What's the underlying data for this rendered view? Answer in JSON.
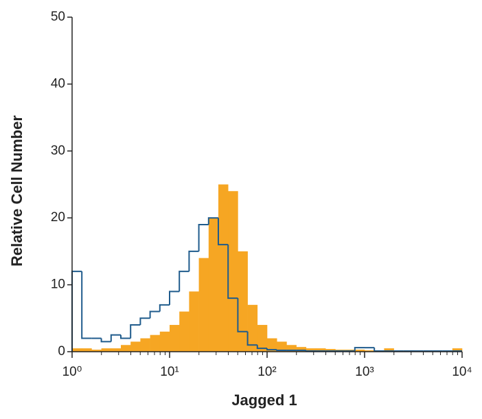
{
  "chart_data": {
    "type": "histogram",
    "x_label": "Jagged 1",
    "y_label": "Relative Cell Number",
    "xscale": "log",
    "xlim": [
      1,
      10000
    ],
    "ylim": [
      0,
      50
    ],
    "xticks": [
      {
        "value": 1,
        "label": "10⁰"
      },
      {
        "value": 10,
        "label": "10¹"
      },
      {
        "value": 100,
        "label": "10²"
      },
      {
        "value": 1000,
        "label": "10³"
      },
      {
        "value": 10000,
        "label": "10⁴"
      }
    ],
    "x_minor_ticks": [
      2,
      3,
      4,
      5,
      6,
      7,
      8,
      9,
      20,
      30,
      40,
      50,
      60,
      70,
      80,
      90,
      200,
      300,
      400,
      500,
      600,
      700,
      800,
      900,
      2000,
      3000,
      4000,
      5000,
      6000,
      7000,
      8000,
      9000
    ],
    "yticks": [
      0,
      10,
      20,
      30,
      40,
      50
    ],
    "bins": [
      1,
      1.259,
      1.585,
      1.995,
      2.512,
      3.162,
      3.981,
      5.012,
      6.31,
      7.943,
      10,
      12.59,
      15.85,
      19.95,
      25.12,
      31.62,
      39.81,
      50.12,
      63.1,
      79.43,
      100,
      125.9,
      158.5,
      199.5,
      251.2,
      316.2,
      398.1,
      501.2,
      631,
      794.3,
      1000,
      1259,
      1585,
      1995,
      2512,
      3162,
      3981,
      5012,
      6310,
      7943,
      10000
    ],
    "series": [
      {
        "style": "filled",
        "color": "#f6a623",
        "values": [
          0.5,
          0.5,
          0.3,
          0.5,
          0.5,
          1,
          1.5,
          2,
          2.5,
          3,
          4,
          6,
          9,
          14,
          20,
          25,
          24,
          15,
          7,
          4,
          2,
          1.5,
          1,
          0.7,
          0.5,
          0.5,
          0.4,
          0.3,
          0.3,
          0.3,
          0.2,
          0.2,
          0.5,
          0.2,
          0.2,
          0.1,
          0.1,
          0.1,
          0.1,
          0.5
        ]
      },
      {
        "style": "outline",
        "color": "#1f5b8c",
        "values": [
          12,
          2,
          2,
          1.5,
          2.5,
          2,
          4,
          5,
          6,
          7,
          9,
          12,
          15,
          19,
          20,
          16,
          8,
          3,
          1,
          0.5,
          0.3,
          0.2,
          0.2,
          0.2,
          0.1,
          0.1,
          0.1,
          0.1,
          0.1,
          0.6,
          0.6,
          0.1,
          0.1,
          0.1,
          0.1,
          0.1,
          0.1,
          0.1,
          0.1,
          0.1
        ]
      }
    ]
  }
}
